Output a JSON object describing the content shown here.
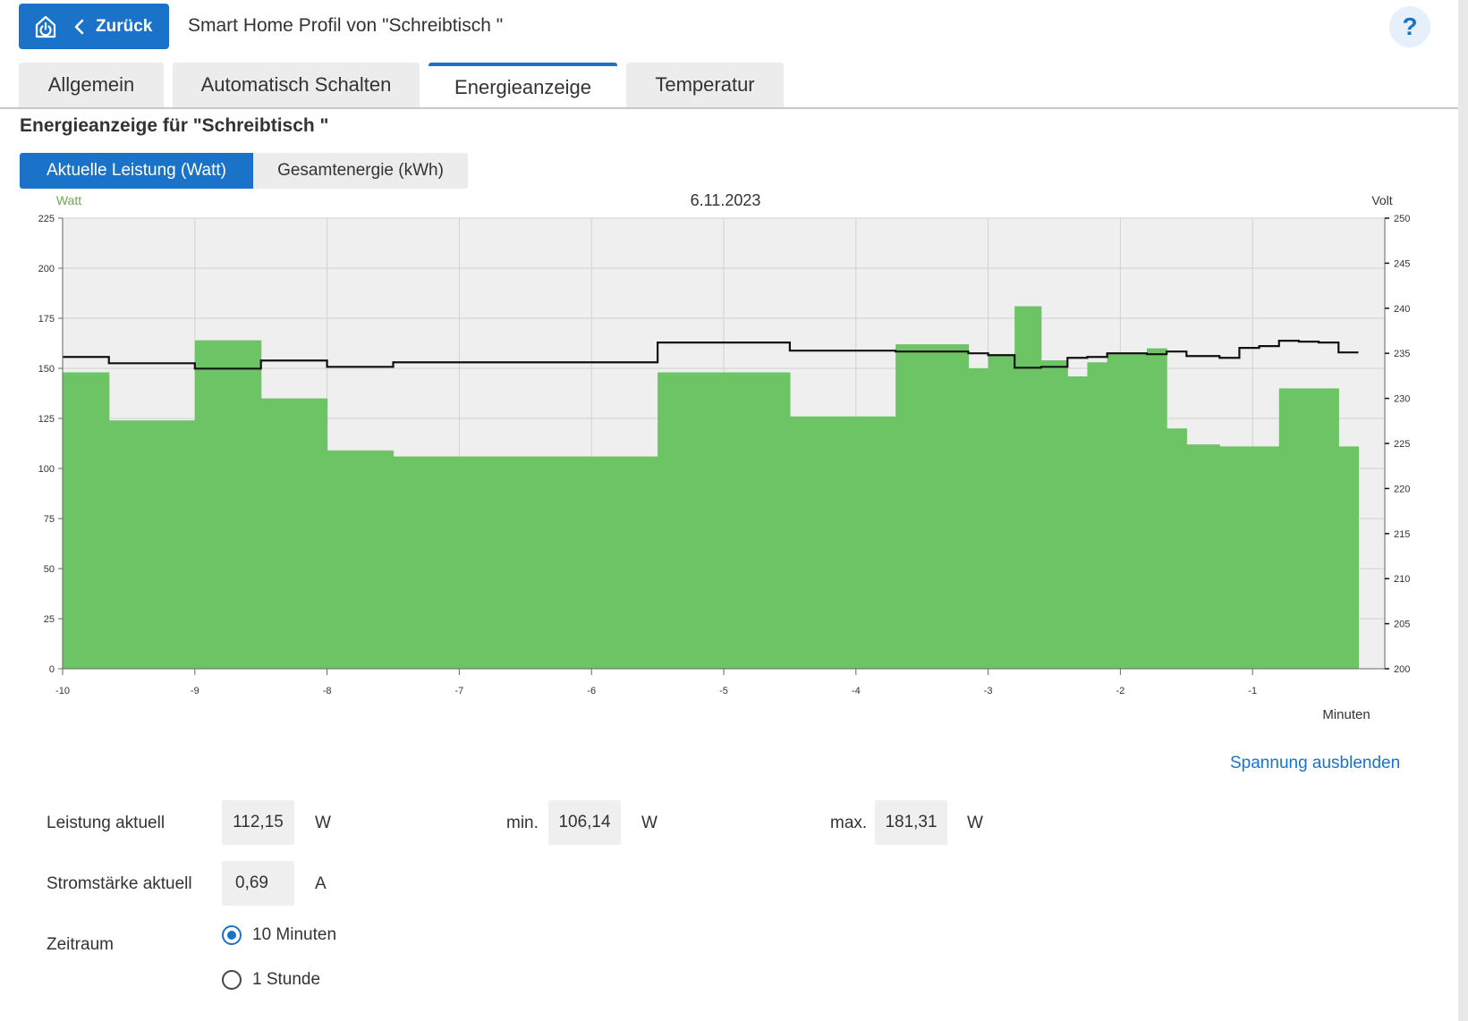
{
  "header": {
    "back_label": "Zurück",
    "title": "Smart Home Profil von \"Schreibtisch \"",
    "help_label": "?",
    "power_icon": "power-icon",
    "back_icon": "chevron-left-icon"
  },
  "tabs": [
    {
      "label": "Allgemein",
      "active": false
    },
    {
      "label": "Automatisch Schalten",
      "active": false
    },
    {
      "label": "Energieanzeige",
      "active": true
    },
    {
      "label": "Temperatur",
      "active": false
    }
  ],
  "section_title": "Energieanzeige für \"Schreibtisch \"",
  "view_toggle": {
    "options": [
      "Aktuelle Leistung (Watt)",
      "Gesamtenergie (kWh)"
    ],
    "selected": 0
  },
  "chart_data": {
    "type": "bar",
    "title": "6.11.2023",
    "xlabel": "Minuten",
    "ylabel_left": "Watt",
    "ylabel_right": "Volt",
    "xlim": [
      -10,
      0
    ],
    "ylim_left": [
      0,
      225
    ],
    "ylim_right": [
      200,
      250
    ],
    "x_ticks": [
      -10,
      -9,
      -8,
      -7,
      -6,
      -5,
      -4,
      -3,
      -2,
      -1
    ],
    "y_ticks_left": [
      0,
      25,
      50,
      75,
      100,
      125,
      150,
      175,
      200,
      225
    ],
    "y_ticks_right": [
      200,
      205,
      210,
      215,
      220,
      225,
      230,
      235,
      240,
      245,
      250
    ],
    "grid": true,
    "colors": {
      "power": "#6dc464",
      "voltage": "#111111",
      "plot_bg": "#efefef",
      "ylabel_left": "#6aa84f"
    },
    "series": [
      {
        "type": "step-bar",
        "axis": "left",
        "points": [
          [
            -10,
            148
          ],
          [
            -9.65,
            124
          ],
          [
            -9,
            164
          ],
          [
            -8.5,
            135
          ],
          [
            -8,
            109
          ],
          [
            -7.5,
            106
          ],
          [
            -5.5,
            148
          ],
          [
            -4.5,
            126
          ],
          [
            -3.7,
            162
          ],
          [
            -3.15,
            150
          ],
          [
            -3,
            157
          ],
          [
            -2.8,
            181
          ],
          [
            -2.6,
            154
          ],
          [
            -2.4,
            146
          ],
          [
            -2.25,
            153
          ],
          [
            -2.1,
            158
          ],
          [
            -1.8,
            160
          ],
          [
            -1.65,
            120
          ],
          [
            -1.5,
            112
          ],
          [
            -1.25,
            111
          ],
          [
            -1.1,
            111
          ],
          [
            -0.95,
            111
          ],
          [
            -0.8,
            140
          ],
          [
            -0.5,
            140
          ],
          [
            -0.35,
            111
          ]
        ],
        "end": -0.2
      },
      {
        "type": "step-line",
        "axis": "right",
        "points": [
          [
            -10,
            234.6
          ],
          [
            -9.65,
            233.9
          ],
          [
            -9,
            233.3
          ],
          [
            -8.5,
            234.2
          ],
          [
            -8,
            233.5
          ],
          [
            -7.5,
            234
          ],
          [
            -5.5,
            236.2
          ],
          [
            -4.5,
            235.3
          ],
          [
            -3.7,
            235.2
          ],
          [
            -3.15,
            235
          ],
          [
            -3,
            234.8
          ],
          [
            -2.8,
            233.4
          ],
          [
            -2.6,
            233.5
          ],
          [
            -2.4,
            234.5
          ],
          [
            -2.25,
            234.6
          ],
          [
            -2.1,
            235
          ],
          [
            -1.8,
            234.9
          ],
          [
            -1.65,
            235.2
          ],
          [
            -1.5,
            234.7
          ],
          [
            -1.25,
            234.5
          ],
          [
            -1.1,
            235.6
          ],
          [
            -0.95,
            235.8
          ],
          [
            -0.8,
            236.4
          ],
          [
            -0.65,
            236.3
          ],
          [
            -0.5,
            236.2
          ],
          [
            -0.35,
            235.1
          ]
        ],
        "end": -0.2
      }
    ]
  },
  "hide_voltage_link": "Spannung ausblenden",
  "stats": {
    "power_label": "Leistung aktuell",
    "power_value": "112,15",
    "power_unit": "W",
    "min_label": "min.",
    "min_value": "106,14",
    "min_unit": "W",
    "max_label": "max.",
    "max_value": "181,31",
    "max_unit": "W",
    "current_label": "Stromstärke aktuell",
    "current_value": "0,69",
    "current_unit": "A"
  },
  "period": {
    "label": "Zeitraum",
    "options": [
      {
        "label": "10 Minuten",
        "checked": true
      },
      {
        "label": "1 Stunde",
        "checked": false
      }
    ]
  }
}
